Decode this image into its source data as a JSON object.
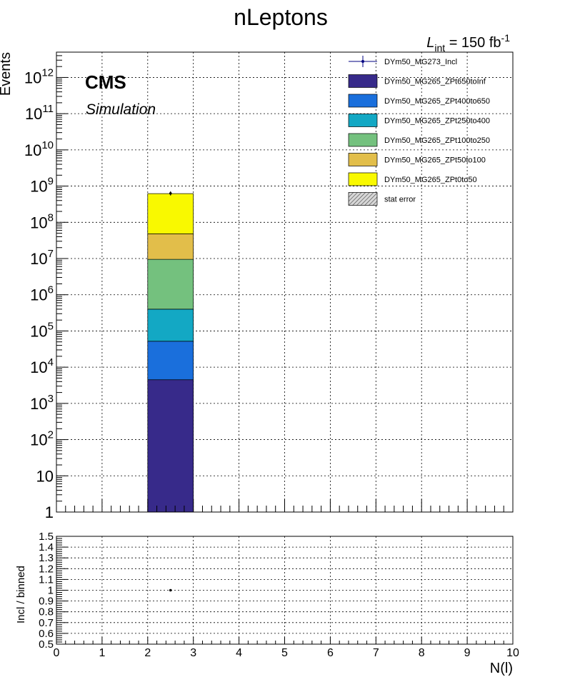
{
  "title": "nLeptons",
  "lumi_L": "L",
  "lumi_sub": "int",
  "lumi_mid": " = 150 fb",
  "lumi_sup": "-1",
  "cms_label": "CMS",
  "sim_label": "Simulation",
  "chart_data": [
    {
      "type": "bar",
      "stacked": true,
      "log_y": true,
      "grid": true,
      "ylabel": "Events",
      "xlim": [
        0,
        10
      ],
      "ylim": [
        1,
        5000000000000.0
      ],
      "y_tick_labels": [
        {
          "v": 1,
          "b": "1",
          "e": ""
        },
        {
          "v": 10,
          "b": "10",
          "e": ""
        },
        {
          "v": 100,
          "b": "10",
          "e": "2"
        },
        {
          "v": 1000,
          "b": "10",
          "e": "3"
        },
        {
          "v": 10000,
          "b": "10",
          "e": "4"
        },
        {
          "v": 100000,
          "b": "10",
          "e": "5"
        },
        {
          "v": 1000000,
          "b": "10",
          "e": "6"
        },
        {
          "v": 10000000,
          "b": "10",
          "e": "7"
        },
        {
          "v": 100000000,
          "b": "10",
          "e": "8"
        },
        {
          "v": 1000000000,
          "b": "10",
          "e": "9"
        },
        {
          "v": 10000000000,
          "b": "10",
          "e": "10"
        },
        {
          "v": 100000000000,
          "b": "10",
          "e": "11"
        },
        {
          "v": 1000000000000,
          "b": "10",
          "e": "12"
        }
      ],
      "bin": [
        2,
        3
      ],
      "stack": [
        {
          "name": "DYm50_MG265_ZPt650toInf",
          "top": 4500,
          "color": "#372a8a"
        },
        {
          "name": "DYm50_MG265_ZPt400to650",
          "top": 52000,
          "color": "#1a6fdc"
        },
        {
          "name": "DYm50_MG265_ZPt250to400",
          "top": 400000,
          "color": "#13a8c4"
        },
        {
          "name": "DYm50_MG265_ZPt100to250",
          "top": 9500000,
          "color": "#74c17e"
        },
        {
          "name": "DYm50_MG265_ZPt50to100",
          "top": 48000000,
          "color": "#e2be4a"
        },
        {
          "name": "DYm50_MG265_ZPt0to50",
          "top": 620000000,
          "color": "#f9f900"
        }
      ],
      "data_point": {
        "name": "DYm50_MG273_Incl",
        "x": 2.5,
        "y": 630000000
      },
      "legend": [
        {
          "label": "DYm50_MG273_Incl",
          "kind": "marker",
          "color": "#000080"
        },
        {
          "label": "DYm50_MG265_ZPt650toInf",
          "kind": "box",
          "color": "#372a8a"
        },
        {
          "label": "DYm50_MG265_ZPt400to650",
          "kind": "box",
          "color": "#1a6fdc"
        },
        {
          "label": "DYm50_MG265_ZPt250to400",
          "kind": "box",
          "color": "#13a8c4"
        },
        {
          "label": "DYm50_MG265_ZPt100to250",
          "kind": "box",
          "color": "#74c17e"
        },
        {
          "label": "DYm50_MG265_ZPt50to100",
          "kind": "box",
          "color": "#e2be4a"
        },
        {
          "label": "DYm50_MG265_ZPt0to50",
          "kind": "box",
          "color": "#f9f900"
        },
        {
          "label": "stat error",
          "kind": "hatch",
          "color": "#999999"
        }
      ],
      "legend_position": "top-right"
    },
    {
      "type": "scatter",
      "grid": true,
      "ylabel": "Incl / binned",
      "xlabel": "N(l)",
      "xlim": [
        0,
        10
      ],
      "ylim": [
        0.5,
        1.5
      ],
      "x_ticks": [
        "0",
        "1",
        "2",
        "3",
        "4",
        "5",
        "6",
        "7",
        "8",
        "9",
        "10"
      ],
      "y_ticks": [
        "0.5",
        "0.6",
        "0.7",
        "0.8",
        "0.9",
        "1",
        "1.1",
        "1.2",
        "1.3",
        "1.4",
        "1.5"
      ],
      "points": [
        {
          "x": 2.5,
          "y": 1.0
        }
      ]
    }
  ]
}
